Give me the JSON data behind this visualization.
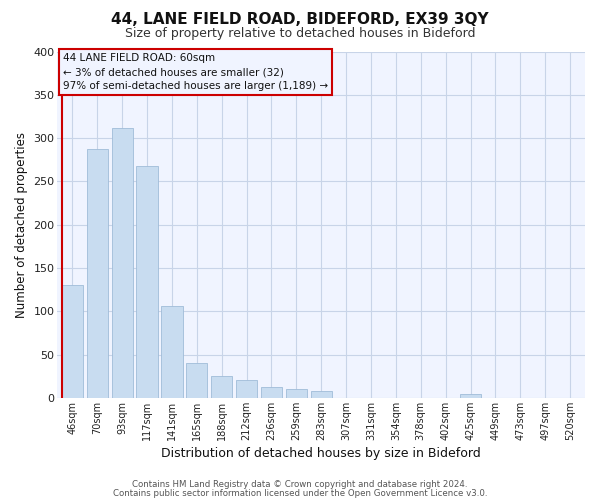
{
  "title1": "44, LANE FIELD ROAD, BIDEFORD, EX39 3QY",
  "title2": "Size of property relative to detached houses in Bideford",
  "xlabel": "Distribution of detached houses by size in Bideford",
  "ylabel": "Number of detached properties",
  "footer1": "Contains HM Land Registry data © Crown copyright and database right 2024.",
  "footer2": "Contains public sector information licensed under the Open Government Licence v3.0.",
  "bar_labels": [
    "46sqm",
    "70sqm",
    "93sqm",
    "117sqm",
    "141sqm",
    "165sqm",
    "188sqm",
    "212sqm",
    "236sqm",
    "259sqm",
    "283sqm",
    "307sqm",
    "331sqm",
    "354sqm",
    "378sqm",
    "402sqm",
    "425sqm",
    "449sqm",
    "473sqm",
    "497sqm",
    "520sqm"
  ],
  "bar_values": [
    130,
    287,
    312,
    268,
    106,
    40,
    25,
    21,
    13,
    10,
    8,
    0,
    0,
    0,
    0,
    0,
    5,
    0,
    0,
    0,
    0
  ],
  "bar_color": "#c8dcf0",
  "bar_edge_color": "#a0bcd8",
  "highlight_bar_index": 0,
  "highlight_line_color": "#cc0000",
  "ylim": [
    0,
    400
  ],
  "yticks": [
    0,
    50,
    100,
    150,
    200,
    250,
    300,
    350,
    400
  ],
  "annotation_title": "44 LANE FIELD ROAD: 60sqm",
  "annotation_line1": "← 3% of detached houses are smaller (32)",
  "annotation_line2": "97% of semi-detached houses are larger (1,189) →",
  "grid_color": "#c8d4e8",
  "background_color": "#ffffff",
  "plot_bg_color": "#f0f4ff"
}
